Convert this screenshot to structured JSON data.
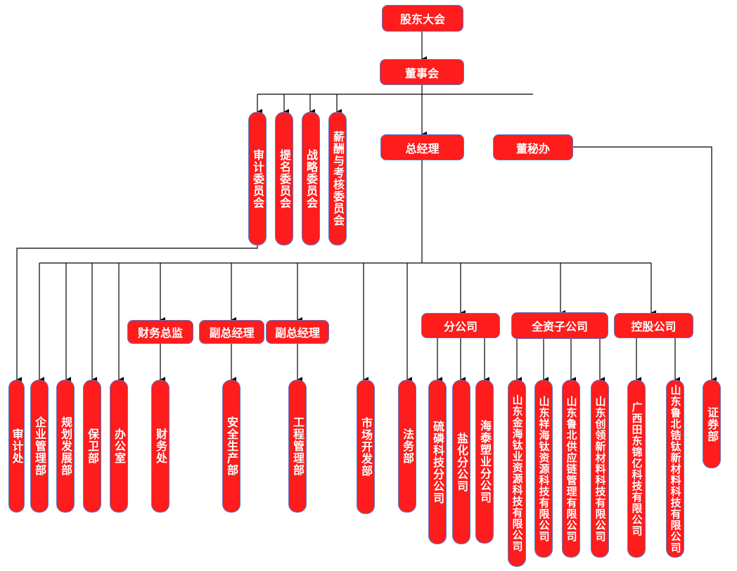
{
  "nodes": {
    "shareholders": "股东大会",
    "board": "董事会",
    "audit_committee": "审计委员会",
    "nomination_committee": "提名委员会",
    "strategy_committee": "战略委员会",
    "compensation_committee": "薪酬与考核委员会",
    "general_manager": "总经理",
    "board_secretary_office": "董秘办",
    "audit_office": "审计处",
    "enterprise_management": "企业管理部",
    "planning_development": "规划发展部",
    "security": "保卫部",
    "office": "办公室",
    "cfo": "财务总监",
    "finance_office": "财务处",
    "deputy_gm_1": "副总经理",
    "safety_production": "安全生产部",
    "deputy_gm_2": "副总经理",
    "engineering_management": "工程管理部",
    "market_development": "市场开发部",
    "legal": "法务部",
    "branches": "分公司",
    "branch_sulfur_phosphorus": "硫磷科技分公司",
    "branch_salt_chemical": "盐化分公司",
    "branch_haitai_plastics": "海泰塑业分公司",
    "wholly_owned": "全资子公司",
    "sub_jinhai": "山东金海钛业资源科技有限公司",
    "sub_xianghai": "山东祥海钛资源科技有限公司",
    "sub_lubei_supply": "山东鲁北供应链管理有限公司",
    "sub_chuangling": "山东创领新材料科技有限公司",
    "holding": "控股公司",
    "hold_guangxi_tiandong": "广西田东锦亿科技有限公司",
    "hold_lubei_zirconium": "山东鲁北锆钛新材料科技有限公司",
    "securities": "证券部"
  },
  "colors": {
    "box_fill": "#fe1c1c",
    "box_border": "#5b7fc7",
    "text": "#ffffff",
    "line": "#000000"
  }
}
